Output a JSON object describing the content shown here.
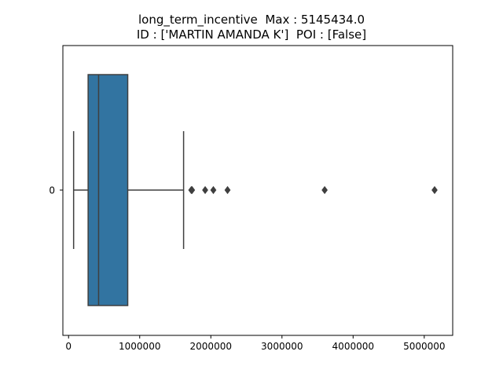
{
  "chart_data": {
    "type": "box",
    "title_line1": "long_term_incentive  Max : 5145434.0",
    "title_line2": "ID : ['MARTIN AMANDA K']  POI : [False]",
    "orientation": "horizontal",
    "categories": [
      "0"
    ],
    "xlim": [
      -80000,
      5400000
    ],
    "x_ticks": [
      0,
      1000000,
      2000000,
      3000000,
      4000000,
      5000000
    ],
    "x_tick_labels": [
      "0",
      "1000000",
      "2000000",
      "3000000",
      "4000000",
      "5000000"
    ],
    "box": {
      "whisker_low": 71023,
      "q1": 275000,
      "median": 422158,
      "q3": 831809,
      "whisker_high": 1617011
    },
    "outliers": [
      1725000,
      1736055,
      1920000,
      2035380,
      2234774,
      3600000,
      5145434
    ],
    "box_color": "#3274a1",
    "line_color": "#3f3f3f",
    "grid": false
  }
}
